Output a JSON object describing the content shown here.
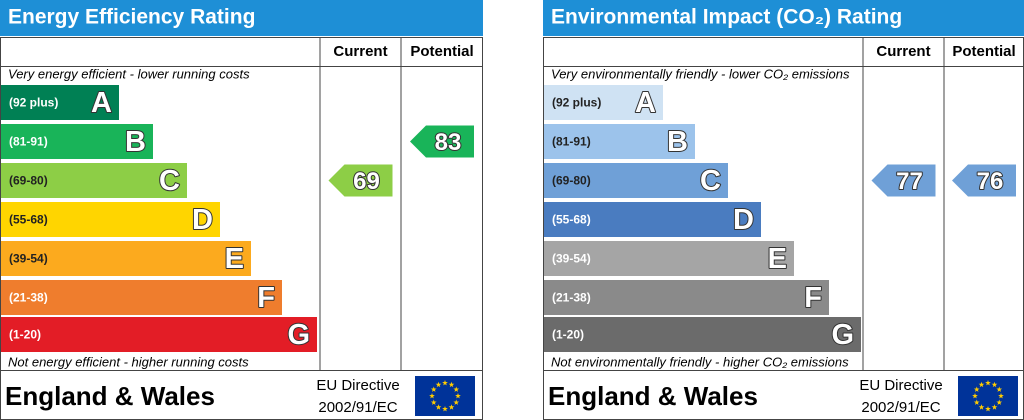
{
  "title_color": "#1e8fd6",
  "panels": [
    {
      "title": "Energy Efficiency Rating",
      "columns": [
        "Current",
        "Potential"
      ],
      "top_note": "Very energy efficient - lower running costs",
      "bands": [
        {
          "range": "(92 plus)",
          "letter": "A",
          "color": "#008054"
        },
        {
          "range": "(81-91)",
          "letter": "B",
          "color": "#19b459"
        },
        {
          "range": "(69-80)",
          "letter": "C",
          "color": "#8dce46"
        },
        {
          "range": "(55-68)",
          "letter": "D",
          "color": "#ffd500"
        },
        {
          "range": "(39-54)",
          "letter": "E",
          "color": "#fcaa1e"
        },
        {
          "range": "(21-38)",
          "letter": "F",
          "color": "#ef7d2d"
        },
        {
          "range": "(1-20)",
          "letter": "G",
          "color": "#e31d26"
        }
      ],
      "bottom_note": "Not energy efficient - higher running costs",
      "current": 69,
      "potential": 83,
      "region": "England & Wales",
      "directive": [
        "EU Directive",
        "2002/91/EC"
      ]
    },
    {
      "title": "Environmental Impact (CO₂) Rating",
      "columns": [
        "Current",
        "Potential"
      ],
      "top_note": "Very environmentally friendly - lower CO₂ emissions",
      "bands": [
        {
          "range": "(92 plus)",
          "letter": "A",
          "color": "#cfe2f3"
        },
        {
          "range": "(81-91)",
          "letter": "B",
          "color": "#9cc3eb"
        },
        {
          "range": "(69-80)",
          "letter": "C",
          "color": "#6fa0d7"
        },
        {
          "range": "(55-68)",
          "letter": "D",
          "color": "#4a7cc0"
        },
        {
          "range": "(39-54)",
          "letter": "E",
          "color": "#a5a5a5"
        },
        {
          "range": "(21-38)",
          "letter": "F",
          "color": "#8a8a8a"
        },
        {
          "range": "(1-20)",
          "letter": "G",
          "color": "#6b6b6b"
        }
      ],
      "bottom_note": "Not environmentally friendly - higher CO₂ emissions",
      "current": 77,
      "potential": 76,
      "region": "England & Wales",
      "directive": [
        "EU Directive",
        "2002/91/EC"
      ]
    }
  ]
}
